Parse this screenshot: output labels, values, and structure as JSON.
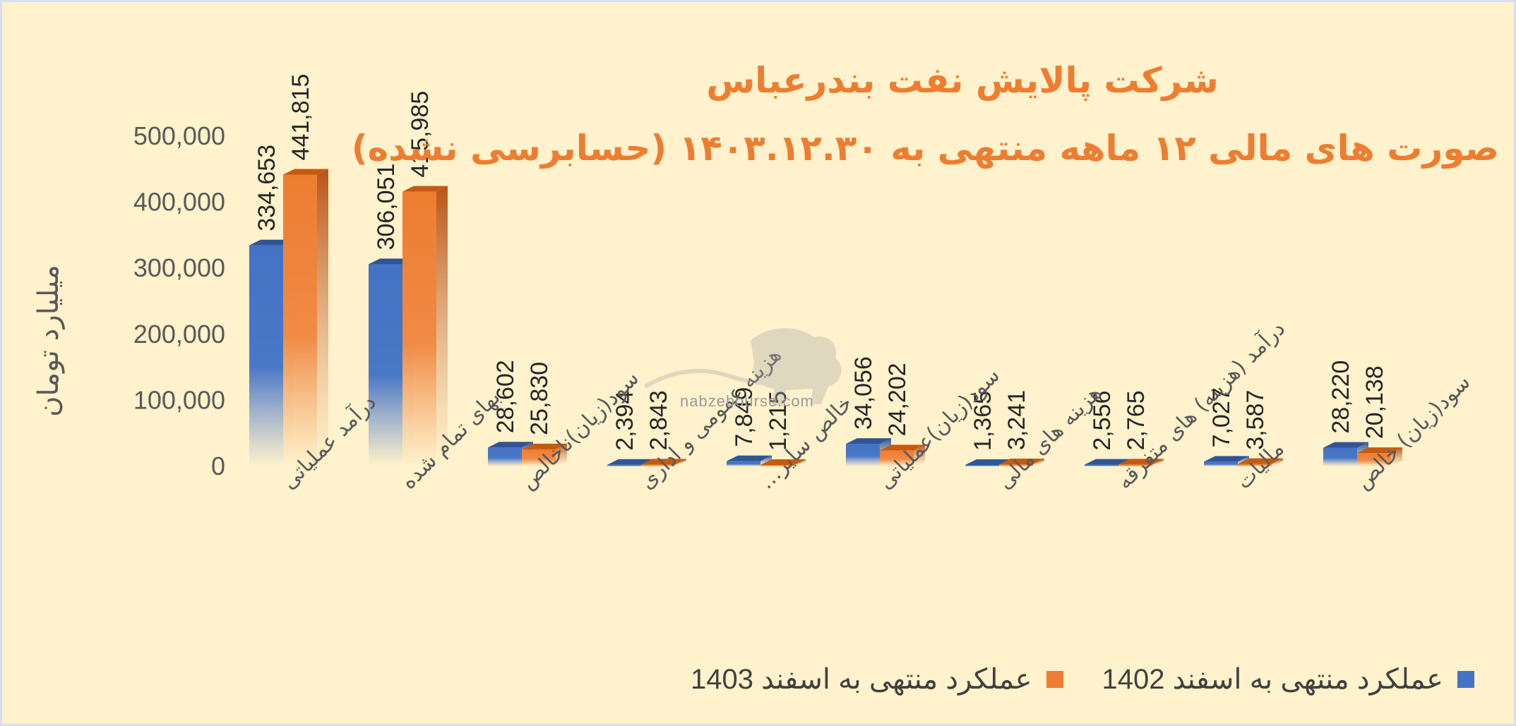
{
  "title": "شرکت پالایش نفت بندرعباس",
  "subtitle": "صورت های مالی ۱۲ ماهه منتهی به ۱۴۰۳.۱۲.۳۰ (حسابرسی نشده)",
  "watermark": "nabzebourse.com",
  "colors": {
    "background": "#fff2cc",
    "title": "#ee7d31",
    "series1402": "#4472c4",
    "series1403": "#ed7d31",
    "axis_text": "#595959"
  },
  "chart_data": {
    "type": "bar",
    "title": "شرکت پالایش نفت بندرعباس",
    "subtitle": "صورت های مالی ۱۲ ماهه منتهی به ۱۴۰۳.۱۲.۳۰ (حسابرسی نشده)",
    "xlabel": "",
    "ylabel": "میلیارد تومان",
    "ylim": [
      0,
      500000
    ],
    "yticks": [
      "0",
      "100,000",
      "200,000",
      "300,000",
      "400,000",
      "500,000"
    ],
    "grid": false,
    "legend_position": "bottom",
    "categories": [
      "درآمد عملیاتی",
      "بهای تمام شده",
      "سود(زیان)ناخالص",
      "هزینه عمومی و اداری",
      "خالص سایر…",
      "سود(زیان)عملیاتی",
      "هزینه های مالی",
      "درآمد (هزینه) های متفرقه",
      "مالیات",
      "سود(زیان) خالص"
    ],
    "series": [
      {
        "name": "عملکرد منتهی به اسفند 1402",
        "values": [
          334653,
          306051,
          28602,
          2394,
          7849,
          34056,
          1365,
          2556,
          7027,
          28220
        ],
        "labels": [
          "334,653",
          "306,051",
          "28,602",
          "2,394",
          "7,849",
          "34,056",
          "1,365",
          "2,556",
          "7,027",
          "28,220"
        ]
      },
      {
        "name": "عملکرد منتهی به اسفند 1403",
        "values": [
          441815,
          415985,
          25830,
          2843,
          1215,
          24202,
          3241,
          2765,
          3587,
          20138
        ],
        "labels": [
          "441,815",
          "415,985",
          "25,830",
          "2,843",
          "1,215",
          "24,202",
          "3,241",
          "2,765",
          "3,587",
          "20,138"
        ]
      }
    ]
  }
}
